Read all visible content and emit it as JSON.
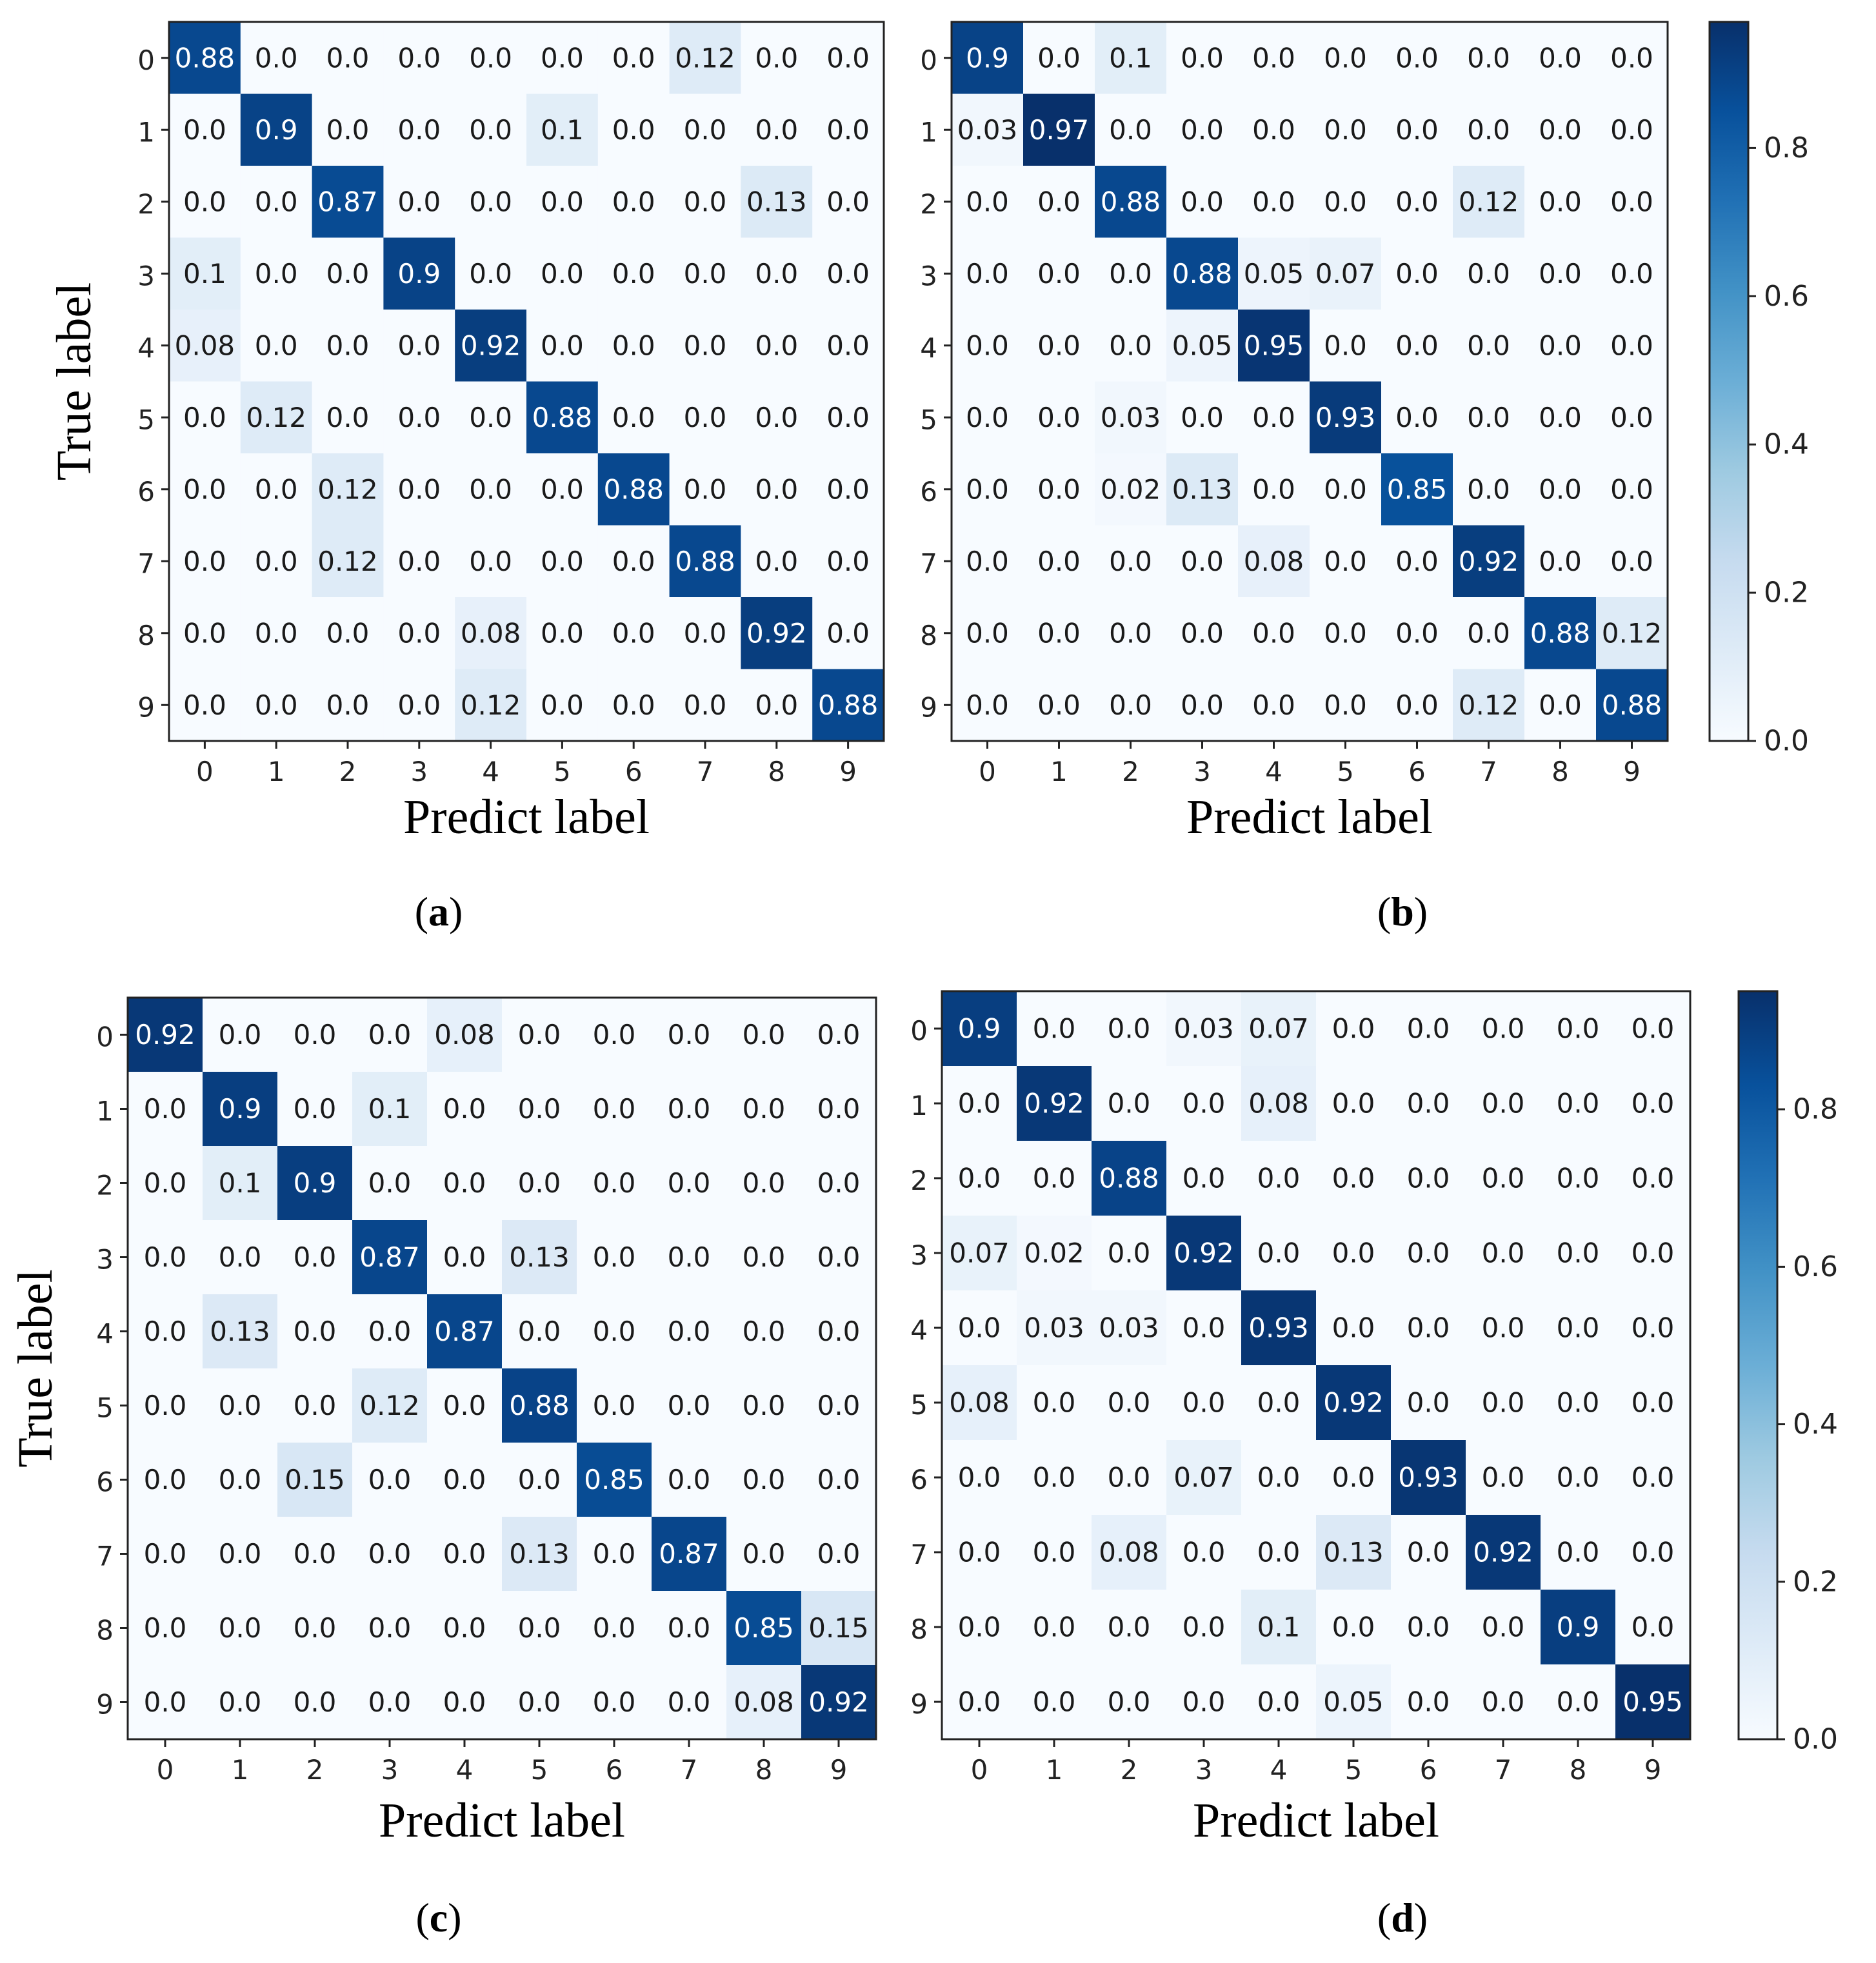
{
  "chart_data": [
    {
      "type": "heatmap",
      "panel": "a",
      "xlabel": "Predict label",
      "ylabel": "True label",
      "x_categories": [
        "0",
        "1",
        "2",
        "3",
        "4",
        "5",
        "6",
        "7",
        "8",
        "9"
      ],
      "y_categories": [
        "0",
        "1",
        "2",
        "3",
        "4",
        "5",
        "6",
        "7",
        "8",
        "9"
      ],
      "matrix": [
        [
          "0.88",
          "0.0",
          "0.0",
          "0.0",
          "0.0",
          "0.0",
          "0.0",
          "0.12",
          "0.0",
          "0.0"
        ],
        [
          "0.0",
          "0.9",
          "0.0",
          "0.0",
          "0.0",
          "0.1",
          "0.0",
          "0.0",
          "0.0",
          "0.0"
        ],
        [
          "0.0",
          "0.0",
          "0.87",
          "0.0",
          "0.0",
          "0.0",
          "0.0",
          "0.0",
          "0.13",
          "0.0"
        ],
        [
          "0.1",
          "0.0",
          "0.0",
          "0.9",
          "0.0",
          "0.0",
          "0.0",
          "0.0",
          "0.0",
          "0.0"
        ],
        [
          "0.08",
          "0.0",
          "0.0",
          "0.0",
          "0.92",
          "0.0",
          "0.0",
          "0.0",
          "0.0",
          "0.0"
        ],
        [
          "0.0",
          "0.12",
          "0.0",
          "0.0",
          "0.0",
          "0.88",
          "0.0",
          "0.0",
          "0.0",
          "0.0"
        ],
        [
          "0.0",
          "0.0",
          "0.12",
          "0.0",
          "0.0",
          "0.0",
          "0.88",
          "0.0",
          "0.0",
          "0.0"
        ],
        [
          "0.0",
          "0.0",
          "0.12",
          "0.0",
          "0.0",
          "0.0",
          "0.0",
          "0.88",
          "0.0",
          "0.0"
        ],
        [
          "0.0",
          "0.0",
          "0.0",
          "0.0",
          "0.08",
          "0.0",
          "0.0",
          "0.0",
          "0.92",
          "0.0"
        ],
        [
          "0.0",
          "0.0",
          "0.0",
          "0.0",
          "0.12",
          "0.0",
          "0.0",
          "0.0",
          "0.0",
          "0.88"
        ]
      ],
      "colormap": "Blues",
      "vmin": 0.0,
      "vmax": 0.97
    },
    {
      "type": "heatmap",
      "panel": "b",
      "xlabel": "Predict label",
      "ylabel": "",
      "x_categories": [
        "0",
        "1",
        "2",
        "3",
        "4",
        "5",
        "6",
        "7",
        "8",
        "9"
      ],
      "y_categories": [
        "0",
        "1",
        "2",
        "3",
        "4",
        "5",
        "6",
        "7",
        "8",
        "9"
      ],
      "matrix": [
        [
          "0.9",
          "0.0",
          "0.1",
          "0.0",
          "0.0",
          "0.0",
          "0.0",
          "0.0",
          "0.0",
          "0.0"
        ],
        [
          "0.03",
          "0.97",
          "0.0",
          "0.0",
          "0.0",
          "0.0",
          "0.0",
          "0.0",
          "0.0",
          "0.0"
        ],
        [
          "0.0",
          "0.0",
          "0.88",
          "0.0",
          "0.0",
          "0.0",
          "0.0",
          "0.12",
          "0.0",
          "0.0"
        ],
        [
          "0.0",
          "0.0",
          "0.0",
          "0.88",
          "0.05",
          "0.07",
          "0.0",
          "0.0",
          "0.0",
          "0.0"
        ],
        [
          "0.0",
          "0.0",
          "0.0",
          "0.05",
          "0.95",
          "0.0",
          "0.0",
          "0.0",
          "0.0",
          "0.0"
        ],
        [
          "0.0",
          "0.0",
          "0.03",
          "0.0",
          "0.0",
          "0.93",
          "0.0",
          "0.0",
          "0.0",
          "0.0"
        ],
        [
          "0.0",
          "0.0",
          "0.02",
          "0.13",
          "0.0",
          "0.0",
          "0.85",
          "0.0",
          "0.0",
          "0.0"
        ],
        [
          "0.0",
          "0.0",
          "0.0",
          "0.0",
          "0.08",
          "0.0",
          "0.0",
          "0.92",
          "0.0",
          "0.0"
        ],
        [
          "0.0",
          "0.0",
          "0.0",
          "0.0",
          "0.0",
          "0.0",
          "0.0",
          "0.0",
          "0.88",
          "0.12"
        ],
        [
          "0.0",
          "0.0",
          "0.0",
          "0.0",
          "0.0",
          "0.0",
          "0.0",
          "0.12",
          "0.0",
          "0.88"
        ]
      ],
      "colormap": "Blues",
      "vmin": 0.0,
      "vmax": 0.97,
      "colorbar": {
        "ticks": [
          "0.0",
          "0.2",
          "0.4",
          "0.6",
          "0.8"
        ],
        "tick_values": [
          0.0,
          0.2,
          0.4,
          0.6,
          0.8
        ]
      }
    },
    {
      "type": "heatmap",
      "panel": "c",
      "xlabel": "Predict label",
      "ylabel": "True label",
      "x_categories": [
        "0",
        "1",
        "2",
        "3",
        "4",
        "5",
        "6",
        "7",
        "8",
        "9"
      ],
      "y_categories": [
        "0",
        "1",
        "2",
        "3",
        "4",
        "5",
        "6",
        "7",
        "8",
        "9"
      ],
      "matrix": [
        [
          "0.92",
          "0.0",
          "0.0",
          "0.0",
          "0.08",
          "0.0",
          "0.0",
          "0.0",
          "0.0",
          "0.0"
        ],
        [
          "0.0",
          "0.9",
          "0.0",
          "0.1",
          "0.0",
          "0.0",
          "0.0",
          "0.0",
          "0.0",
          "0.0"
        ],
        [
          "0.0",
          "0.1",
          "0.9",
          "0.0",
          "0.0",
          "0.0",
          "0.0",
          "0.0",
          "0.0",
          "0.0"
        ],
        [
          "0.0",
          "0.0",
          "0.0",
          "0.87",
          "0.0",
          "0.13",
          "0.0",
          "0.0",
          "0.0",
          "0.0"
        ],
        [
          "0.0",
          "0.13",
          "0.0",
          "0.0",
          "0.87",
          "0.0",
          "0.0",
          "0.0",
          "0.0",
          "0.0"
        ],
        [
          "0.0",
          "0.0",
          "0.0",
          "0.12",
          "0.0",
          "0.88",
          "0.0",
          "0.0",
          "0.0",
          "0.0"
        ],
        [
          "0.0",
          "0.0",
          "0.15",
          "0.0",
          "0.0",
          "0.0",
          "0.85",
          "0.0",
          "0.0",
          "0.0"
        ],
        [
          "0.0",
          "0.0",
          "0.0",
          "0.0",
          "0.0",
          "0.13",
          "0.0",
          "0.87",
          "0.0",
          "0.0"
        ],
        [
          "0.0",
          "0.0",
          "0.0",
          "0.0",
          "0.0",
          "0.0",
          "0.0",
          "0.0",
          "0.85",
          "0.15"
        ],
        [
          "0.0",
          "0.0",
          "0.0",
          "0.0",
          "0.0",
          "0.0",
          "0.0",
          "0.0",
          "0.08",
          "0.92"
        ]
      ],
      "colormap": "Blues",
      "vmin": 0.0,
      "vmax": 0.95
    },
    {
      "type": "heatmap",
      "panel": "d",
      "xlabel": "Predict label",
      "ylabel": "",
      "x_categories": [
        "0",
        "1",
        "2",
        "3",
        "4",
        "5",
        "6",
        "7",
        "8",
        "9"
      ],
      "y_categories": [
        "0",
        "1",
        "2",
        "3",
        "4",
        "5",
        "6",
        "7",
        "8",
        "9"
      ],
      "matrix": [
        [
          "0.9",
          "0.0",
          "0.0",
          "0.03",
          "0.07",
          "0.0",
          "0.0",
          "0.0",
          "0.0",
          "0.0"
        ],
        [
          "0.0",
          "0.92",
          "0.0",
          "0.0",
          "0.08",
          "0.0",
          "0.0",
          "0.0",
          "0.0",
          "0.0"
        ],
        [
          "0.0",
          "0.0",
          "0.88",
          "0.0",
          "0.0",
          "0.0",
          "0.0",
          "0.0",
          "0.0",
          "0.0"
        ],
        [
          "0.07",
          "0.02",
          "0.0",
          "0.92",
          "0.0",
          "0.0",
          "0.0",
          "0.0",
          "0.0",
          "0.0"
        ],
        [
          "0.0",
          "0.03",
          "0.03",
          "0.0",
          "0.93",
          "0.0",
          "0.0",
          "0.0",
          "0.0",
          "0.0"
        ],
        [
          "0.08",
          "0.0",
          "0.0",
          "0.0",
          "0.0",
          "0.92",
          "0.0",
          "0.0",
          "0.0",
          "0.0"
        ],
        [
          "0.0",
          "0.0",
          "0.0",
          "0.07",
          "0.0",
          "0.0",
          "0.93",
          "0.0",
          "0.0",
          "0.0"
        ],
        [
          "0.0",
          "0.0",
          "0.08",
          "0.0",
          "0.0",
          "0.13",
          "0.0",
          "0.92",
          "0.0",
          "0.0"
        ],
        [
          "0.0",
          "0.0",
          "0.0",
          "0.0",
          "0.1",
          "0.0",
          "0.0",
          "0.0",
          "0.9",
          "0.0"
        ],
        [
          "0.0",
          "0.0",
          "0.0",
          "0.0",
          "0.0",
          "0.05",
          "0.0",
          "0.0",
          "0.0",
          "0.95"
        ]
      ],
      "colormap": "Blues",
      "vmin": 0.0,
      "vmax": 0.95,
      "colorbar": {
        "ticks": [
          "0.0",
          "0.2",
          "0.4",
          "0.6",
          "0.8"
        ],
        "tick_values": [
          0.0,
          0.2,
          0.4,
          0.6,
          0.8
        ]
      }
    }
  ],
  "panel_labels": {
    "a": "a",
    "b": "b",
    "c": "c",
    "d": "d"
  }
}
